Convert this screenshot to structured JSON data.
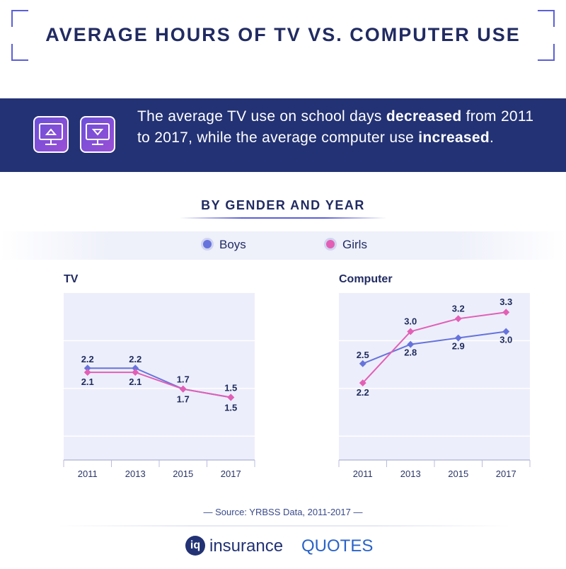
{
  "header": {
    "title": "Average Hours of TV vs. Computer Use"
  },
  "banner": {
    "text_part1": "The average TV use on school days ",
    "text_bold1": "decreased",
    "text_part2": " from 2011 to 2017, while the average computer use ",
    "text_bold2": "increased",
    "text_part3": ".",
    "icons": [
      "monitor-up-icon",
      "monitor-down-icon"
    ]
  },
  "section": {
    "title": "BY GENDER AND YEAR"
  },
  "legend": {
    "boys_label": "Boys",
    "girls_label": "Girls"
  },
  "colors": {
    "boys": "#6673dc",
    "girls": "#e25fb5",
    "banner_bg": "#233274",
    "plot_bg": "#eceefb"
  },
  "chart_data": [
    {
      "type": "line",
      "title": "TV",
      "categories": [
        "2011",
        "2013",
        "2015",
        "2017"
      ],
      "series": [
        {
          "name": "Boys",
          "values": [
            2.2,
            2.2,
            1.7,
            1.5
          ],
          "color": "#6673dc"
        },
        {
          "name": "Girls",
          "values": [
            2.1,
            2.1,
            1.7,
            1.5
          ],
          "color": "#e25fb5"
        }
      ],
      "ylim": [
        0,
        4
      ],
      "grid": true
    },
    {
      "type": "line",
      "title": "Computer",
      "categories": [
        "2011",
        "2013",
        "2015",
        "2017"
      ],
      "series": [
        {
          "name": "Boys",
          "values": [
            2.5,
            2.8,
            2.9,
            3.0
          ],
          "color": "#6673dc"
        },
        {
          "name": "Girls",
          "values": [
            2.2,
            3.0,
            3.2,
            3.3
          ],
          "color": "#e25fb5"
        }
      ],
      "ylim": [
        1.0,
        3.6
      ],
      "grid": true
    }
  ],
  "footer": {
    "source": "— Source: YRBSS Data, 2011-2017 —",
    "logo_part1": "insurance",
    "logo_part2": "QUOTES",
    "logo_mark": "iq"
  }
}
